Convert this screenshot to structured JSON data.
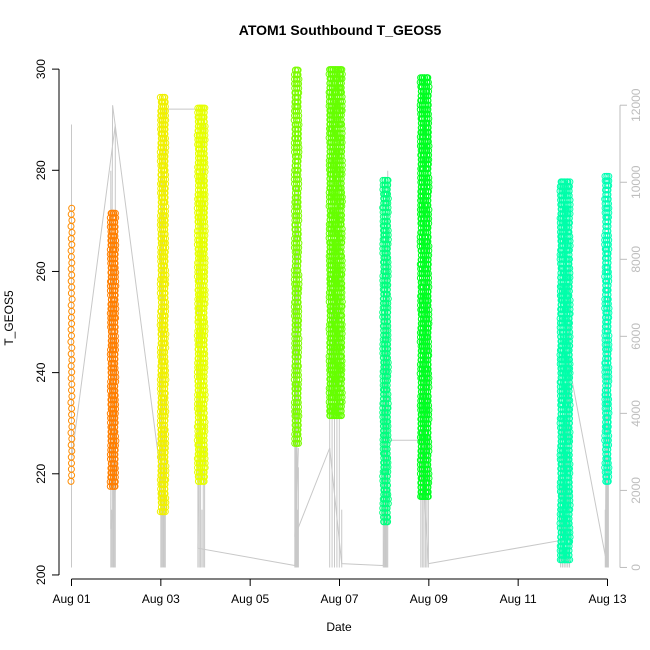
{
  "chart_data": {
    "type": "scatter",
    "title": "ATOM1 Southbound T_GEOS5",
    "xlabel": "Date",
    "ylabel": "T_GEOS5",
    "x_tick_labels": [
      "Aug 01",
      "Aug 03",
      "Aug 05",
      "Aug 07",
      "Aug 09",
      "Aug 11",
      "Aug 13"
    ],
    "x_tick_days": [
      1,
      3,
      5,
      7,
      9,
      11,
      13
    ],
    "xlim": [
      0.72,
      13.28
    ],
    "y_ticks": [
      200,
      220,
      240,
      260,
      280,
      300
    ],
    "ylim": [
      199.2,
      302
    ],
    "y2_ticks": [
      0,
      2000,
      4000,
      6000,
      8000,
      10000,
      12000
    ],
    "y2lim": [
      -300,
      13200
    ],
    "grid": false,
    "legend": "none",
    "colors": {
      "altitude_line": "#c8c8c8",
      "axis": "#000000",
      "right_axis": "#bdbdbd"
    },
    "series": [
      {
        "color": "#FF8C00",
        "x": [
          1.0,
          1.0
        ],
        "y_range": [
          218.5,
          272.5
        ],
        "style": "sparse"
      },
      {
        "color": "#FF7F00",
        "x": [
          1.88,
          1.98
        ],
        "y_range": [
          217.5,
          271.5
        ],
        "style": "dense"
      },
      {
        "color": "#F0F000",
        "x": [
          3.0,
          3.1
        ],
        "y_range": [
          212.5,
          294.5
        ],
        "style": "dense"
      },
      {
        "color": "#E6FF00",
        "x": [
          3.83,
          3.98
        ],
        "y_range": [
          218.5,
          292.5
        ],
        "style": "dense"
      },
      {
        "color": "#7CFC00",
        "x": [
          6.0,
          6.08
        ],
        "y_range": [
          226.0,
          299.8
        ],
        "style": "dense"
      },
      {
        "color": "#66FF00",
        "x": [
          6.78,
          7.05
        ],
        "y_range": [
          231.5,
          300.2
        ],
        "style": "dense"
      },
      {
        "color": "#00FF7F",
        "x": [
          7.98,
          8.08
        ],
        "y_range": [
          210.5,
          278.5
        ],
        "style": "dense"
      },
      {
        "color": "#00FF22",
        "x": [
          8.82,
          8.99
        ],
        "y_range": [
          215.5,
          299.0
        ],
        "style": "dense"
      },
      {
        "color": "#00FFAA",
        "x": [
          11.95,
          12.15
        ],
        "y_range": [
          203.0,
          278.0
        ],
        "style": "dense"
      },
      {
        "color": "#00FFB4",
        "x": [
          12.95,
          13.02
        ],
        "y_range": [
          218.5,
          279.5
        ],
        "style": "dense"
      }
    ],
    "altitude_trace": {
      "axis": "right",
      "x": [
        1.0,
        1.0,
        1.98,
        1.98,
        1.88,
        1.92,
        3.0,
        3.1,
        3.98,
        3.83,
        6.0,
        6.08,
        6.0,
        6.78,
        7.05,
        7.98,
        8.08,
        8.82,
        8.99,
        11.95,
        12.15,
        12.95,
        13.02
      ],
      "y": [
        11500,
        2800,
        11500,
        2000,
        1000,
        12000,
        2400,
        11900,
        11900,
        500,
        50,
        3100,
        800,
        3100,
        100,
        50,
        3300,
        3300,
        100,
        700,
        5200,
        300,
        10200
      ]
    }
  }
}
